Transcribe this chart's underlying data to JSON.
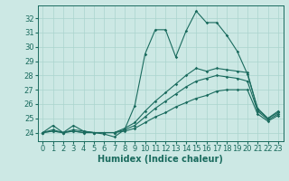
{
  "bg_color": "#cce8e4",
  "line_color": "#1a6b5e",
  "grid_color": "#aad4ce",
  "xlabel": "Humidex (Indice chaleur)",
  "xlabel_fontsize": 7,
  "tick_fontsize": 6,
  "xlim": [
    -0.5,
    23.5
  ],
  "ylim": [
    23.4,
    32.9
  ],
  "yticks": [
    24,
    25,
    26,
    27,
    28,
    29,
    30,
    31,
    32
  ],
  "xticks": [
    0,
    1,
    2,
    3,
    4,
    5,
    6,
    7,
    8,
    9,
    10,
    11,
    12,
    13,
    14,
    15,
    16,
    17,
    18,
    19,
    20,
    21,
    22,
    23
  ],
  "line1_x": [
    0,
    1,
    2,
    3,
    4,
    5,
    6,
    7,
    8,
    9,
    10,
    11,
    12,
    13,
    14,
    15,
    16,
    17,
    18,
    19,
    20,
    21,
    22,
    23
  ],
  "line1_y": [
    24.0,
    24.5,
    24.0,
    24.5,
    24.1,
    24.0,
    23.9,
    23.7,
    24.2,
    25.9,
    29.5,
    31.2,
    31.2,
    29.3,
    31.1,
    32.5,
    31.7,
    31.7,
    30.8,
    29.7,
    28.1,
    25.7,
    25.0,
    25.5
  ],
  "line2_x": [
    0,
    1,
    2,
    3,
    4,
    5,
    6,
    7,
    8,
    9,
    10,
    11,
    12,
    13,
    14,
    15,
    16,
    17,
    18,
    19,
    20,
    21,
    22,
    23
  ],
  "line2_y": [
    24.0,
    24.2,
    24.0,
    24.2,
    24.1,
    24.0,
    24.0,
    24.0,
    24.3,
    24.7,
    25.5,
    26.2,
    26.8,
    27.4,
    28.0,
    28.5,
    28.3,
    28.5,
    28.4,
    28.3,
    28.2,
    25.6,
    25.0,
    25.4
  ],
  "line3_x": [
    0,
    1,
    2,
    3,
    4,
    5,
    6,
    7,
    8,
    9,
    10,
    11,
    12,
    13,
    14,
    15,
    16,
    17,
    18,
    19,
    20,
    21,
    22,
    23
  ],
  "line3_y": [
    24.0,
    24.1,
    24.0,
    24.1,
    24.0,
    24.0,
    24.0,
    24.0,
    24.2,
    24.5,
    25.1,
    25.7,
    26.2,
    26.7,
    27.2,
    27.6,
    27.8,
    28.0,
    27.9,
    27.8,
    27.6,
    25.5,
    24.9,
    25.3
  ],
  "line4_x": [
    0,
    1,
    2,
    3,
    4,
    5,
    6,
    7,
    8,
    9,
    10,
    11,
    12,
    13,
    14,
    15,
    16,
    17,
    18,
    19,
    20,
    21,
    22,
    23
  ],
  "line4_y": [
    24.0,
    24.1,
    24.0,
    24.1,
    24.0,
    24.0,
    24.0,
    24.0,
    24.1,
    24.3,
    24.7,
    25.1,
    25.4,
    25.8,
    26.1,
    26.4,
    26.6,
    26.9,
    27.0,
    27.0,
    27.0,
    25.3,
    24.8,
    25.2
  ]
}
